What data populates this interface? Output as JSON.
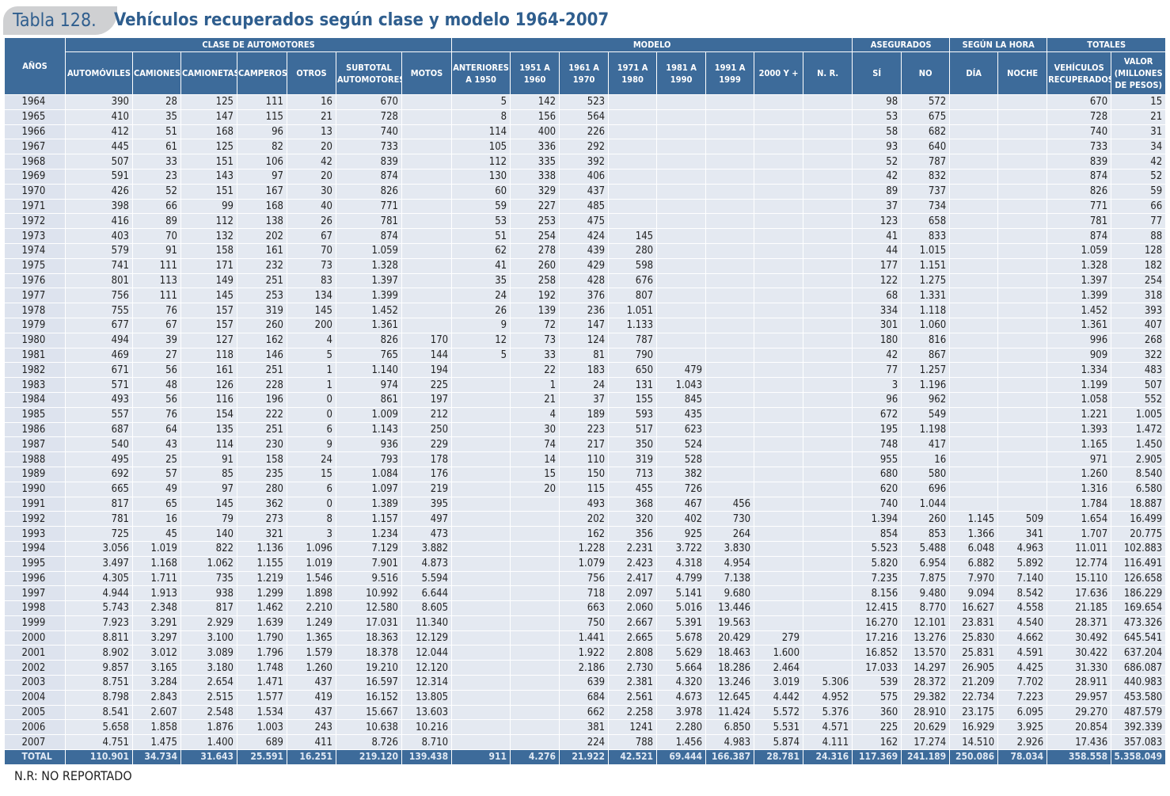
{
  "header": {
    "label": "Tabla 128.",
    "title": "Vehículos recuperados según clase y modelo 1964-2007"
  },
  "table": {
    "groups": [
      {
        "text": "CLASE  DE AUTOMOTORES",
        "span": 7
      },
      {
        "text": "MODELO",
        "span": 8
      },
      {
        "text": "ASEGURADOS",
        "span": 2
      },
      {
        "text": "SEGÚN LA HORA",
        "span": 2
      },
      {
        "text": "TOTALES",
        "span": 2
      }
    ],
    "columns": [
      "AÑOS",
      "AUTOMÓVILES",
      "CAMIONES",
      "CAMIONETAS",
      "CAMPEROS",
      "OTROS",
      "SUBTOTAL AUTOMOTORES",
      "MOTOS",
      "ANTERIORES A 1950",
      "1951 A 1960",
      "1961 A 1970",
      "1971 A 1980",
      "1981 A 1990",
      "1991 A 1999",
      "2000 Y +",
      "N. R.",
      "SÍ",
      "NO",
      "DÍA",
      "NOCHE",
      "VEHÍCULOS RECUPERADOS",
      "VALOR (MILLONES DE PESOS)"
    ],
    "rows": [
      [
        "1964",
        "390",
        "28",
        "125",
        "111",
        "16",
        "670",
        null,
        "5",
        "142",
        "523",
        null,
        null,
        null,
        null,
        null,
        "98",
        "572",
        null,
        null,
        "670",
        "15"
      ],
      [
        "1965",
        "410",
        "35",
        "147",
        "115",
        "21",
        "728",
        null,
        "8",
        "156",
        "564",
        null,
        null,
        null,
        null,
        null,
        "53",
        "675",
        null,
        null,
        "728",
        "21"
      ],
      [
        "1966",
        "412",
        "51",
        "168",
        "96",
        "13",
        "740",
        null,
        "114",
        "400",
        "226",
        null,
        null,
        null,
        null,
        null,
        "58",
        "682",
        null,
        null,
        "740",
        "31"
      ],
      [
        "1967",
        "445",
        "61",
        "125",
        "82",
        "20",
        "733",
        null,
        "105",
        "336",
        "292",
        null,
        null,
        null,
        null,
        null,
        "93",
        "640",
        null,
        null,
        "733",
        "34"
      ],
      [
        "1968",
        "507",
        "33",
        "151",
        "106",
        "42",
        "839",
        null,
        "112",
        "335",
        "392",
        null,
        null,
        null,
        null,
        null,
        "52",
        "787",
        null,
        null,
        "839",
        "42"
      ],
      [
        "1969",
        "591",
        "23",
        "143",
        "97",
        "20",
        "874",
        null,
        "130",
        "338",
        "406",
        null,
        null,
        null,
        null,
        null,
        "42",
        "832",
        null,
        null,
        "874",
        "52"
      ],
      [
        "1970",
        "426",
        "52",
        "151",
        "167",
        "30",
        "826",
        null,
        "60",
        "329",
        "437",
        null,
        null,
        null,
        null,
        null,
        "89",
        "737",
        null,
        null,
        "826",
        "59"
      ],
      [
        "1971",
        "398",
        "66",
        "99",
        "168",
        "40",
        "771",
        null,
        "59",
        "227",
        "485",
        null,
        null,
        null,
        null,
        null,
        "37",
        "734",
        null,
        null,
        "771",
        "66"
      ],
      [
        "1972",
        "416",
        "89",
        "112",
        "138",
        "26",
        "781",
        null,
        "53",
        "253",
        "475",
        null,
        null,
        null,
        null,
        null,
        "123",
        "658",
        null,
        null,
        "781",
        "77"
      ],
      [
        "1973",
        "403",
        "70",
        "132",
        "202",
        "67",
        "874",
        null,
        "51",
        "254",
        "424",
        "145",
        null,
        null,
        null,
        null,
        "41",
        "833",
        null,
        null,
        "874",
        "88"
      ],
      [
        "1974",
        "579",
        "91",
        "158",
        "161",
        "70",
        "1.059",
        null,
        "62",
        "278",
        "439",
        "280",
        null,
        null,
        null,
        null,
        "44",
        "1.015",
        null,
        null,
        "1.059",
        "128"
      ],
      [
        "1975",
        "741",
        "111",
        "171",
        "232",
        "73",
        "1.328",
        null,
        "41",
        "260",
        "429",
        "598",
        null,
        null,
        null,
        null,
        "177",
        "1.151",
        null,
        null,
        "1.328",
        "182"
      ],
      [
        "1976",
        "801",
        "113",
        "149",
        "251",
        "83",
        "1.397",
        null,
        "35",
        "258",
        "428",
        "676",
        null,
        null,
        null,
        null,
        "122",
        "1.275",
        null,
        null,
        "1.397",
        "254"
      ],
      [
        "1977",
        "756",
        "111",
        "145",
        "253",
        "134",
        "1.399",
        null,
        "24",
        "192",
        "376",
        "807",
        null,
        null,
        null,
        null,
        "68",
        "1.331",
        null,
        null,
        "1.399",
        "318"
      ],
      [
        "1978",
        "755",
        "76",
        "157",
        "319",
        "145",
        "1.452",
        null,
        "26",
        "139",
        "236",
        "1.051",
        null,
        null,
        null,
        null,
        "334",
        "1.118",
        null,
        null,
        "1.452",
        "393"
      ],
      [
        "1979",
        "677",
        "67",
        "157",
        "260",
        "200",
        "1.361",
        null,
        "9",
        "72",
        "147",
        "1.133",
        null,
        null,
        null,
        null,
        "301",
        "1.060",
        null,
        null,
        "1.361",
        "407"
      ],
      [
        "1980",
        "494",
        "39",
        "127",
        "162",
        "4",
        "826",
        "170",
        "12",
        "73",
        "124",
        "787",
        null,
        null,
        null,
        null,
        "180",
        "816",
        null,
        null,
        "996",
        "268"
      ],
      [
        "1981",
        "469",
        "27",
        "118",
        "146",
        "5",
        "765",
        "144",
        "5",
        "33",
        "81",
        "790",
        null,
        null,
        null,
        null,
        "42",
        "867",
        null,
        null,
        "909",
        "322"
      ],
      [
        "1982",
        "671",
        "56",
        "161",
        "251",
        "1",
        "1.140",
        "194",
        null,
        "22",
        "183",
        "650",
        "479",
        null,
        null,
        null,
        "77",
        "1.257",
        null,
        null,
        "1.334",
        "483"
      ],
      [
        "1983",
        "571",
        "48",
        "126",
        "228",
        "1",
        "974",
        "225",
        null,
        "1",
        "24",
        "131",
        "1.043",
        null,
        null,
        null,
        "3",
        "1.196",
        null,
        null,
        "1.199",
        "507"
      ],
      [
        "1984",
        "493",
        "56",
        "116",
        "196",
        "0",
        "861",
        "197",
        null,
        "21",
        "37",
        "155",
        "845",
        null,
        null,
        null,
        "96",
        "962",
        null,
        null,
        "1.058",
        "552"
      ],
      [
        "1985",
        "557",
        "76",
        "154",
        "222",
        "0",
        "1.009",
        "212",
        null,
        "4",
        "189",
        "593",
        "435",
        null,
        null,
        null,
        "672",
        "549",
        null,
        null,
        "1.221",
        "1.005"
      ],
      [
        "1986",
        "687",
        "64",
        "135",
        "251",
        "6",
        "1.143",
        "250",
        null,
        "30",
        "223",
        "517",
        "623",
        null,
        null,
        null,
        "195",
        "1.198",
        null,
        null,
        "1.393",
        "1.472"
      ],
      [
        "1987",
        "540",
        "43",
        "114",
        "230",
        "9",
        "936",
        "229",
        null,
        "74",
        "217",
        "350",
        "524",
        null,
        null,
        null,
        "748",
        "417",
        null,
        null,
        "1.165",
        "1.450"
      ],
      [
        "1988",
        "495",
        "25",
        "91",
        "158",
        "24",
        "793",
        "178",
        null,
        "14",
        "110",
        "319",
        "528",
        null,
        null,
        null,
        "955",
        "16",
        null,
        null,
        "971",
        "2.905"
      ],
      [
        "1989",
        "692",
        "57",
        "85",
        "235",
        "15",
        "1.084",
        "176",
        null,
        "15",
        "150",
        "713",
        "382",
        null,
        null,
        null,
        "680",
        "580",
        null,
        null,
        "1.260",
        "8.540"
      ],
      [
        "1990",
        "665",
        "49",
        "97",
        "280",
        "6",
        "1.097",
        "219",
        null,
        "20",
        "115",
        "455",
        "726",
        null,
        null,
        null,
        "620",
        "696",
        null,
        null,
        "1.316",
        "6.580"
      ],
      [
        "1991",
        "817",
        "65",
        "145",
        "362",
        "0",
        "1.389",
        "395",
        null,
        null,
        "493",
        "368",
        "467",
        "456",
        null,
        null,
        "740",
        "1.044",
        null,
        null,
        "1.784",
        "18.887"
      ],
      [
        "1992",
        "781",
        "16",
        "79",
        "273",
        "8",
        "1.157",
        "497",
        null,
        null,
        "202",
        "320",
        "402",
        "730",
        null,
        null,
        "1.394",
        "260",
        "1.145",
        "509",
        "1.654",
        "16.499"
      ],
      [
        "1993",
        "725",
        "45",
        "140",
        "321",
        "3",
        "1.234",
        "473",
        null,
        null,
        "162",
        "356",
        "925",
        "264",
        null,
        null,
        "854",
        "853",
        "1.366",
        "341",
        "1.707",
        "20.775"
      ],
      [
        "1994",
        "3.056",
        "1.019",
        "822",
        "1.136",
        "1.096",
        "7.129",
        "3.882",
        null,
        null,
        "1.228",
        "2.231",
        "3.722",
        "3.830",
        null,
        null,
        "5.523",
        "5.488",
        "6.048",
        "4.963",
        "11.011",
        "102.883"
      ],
      [
        "1995",
        "3.497",
        "1.168",
        "1.062",
        "1.155",
        "1.019",
        "7.901",
        "4.873",
        null,
        null,
        "1.079",
        "2.423",
        "4.318",
        "4.954",
        null,
        null,
        "5.820",
        "6.954",
        "6.882",
        "5.892",
        "12.774",
        "116.491"
      ],
      [
        "1996",
        "4.305",
        "1.711",
        "735",
        "1.219",
        "1.546",
        "9.516",
        "5.594",
        null,
        null,
        "756",
        "2.417",
        "4.799",
        "7.138",
        null,
        null,
        "7.235",
        "7.875",
        "7.970",
        "7.140",
        "15.110",
        "126.658"
      ],
      [
        "1997",
        "4.944",
        "1.913",
        "938",
        "1.299",
        "1.898",
        "10.992",
        "6.644",
        null,
        null,
        "718",
        "2.097",
        "5.141",
        "9.680",
        null,
        null,
        "8.156",
        "9.480",
        "9.094",
        "8.542",
        "17.636",
        "186.229"
      ],
      [
        "1998",
        "5.743",
        "2.348",
        "817",
        "1.462",
        "2.210",
        "12.580",
        "8.605",
        null,
        null,
        "663",
        "2.060",
        "5.016",
        "13.446",
        null,
        null,
        "12.415",
        "8.770",
        "16.627",
        "4.558",
        "21.185",
        "169.654"
      ],
      [
        "1999",
        "7.923",
        "3.291",
        "2.929",
        "1.639",
        "1.249",
        "17.031",
        "11.340",
        null,
        null,
        "750",
        "2.667",
        "5.391",
        "19.563",
        null,
        null,
        "16.270",
        "12.101",
        "23.831",
        "4.540",
        "28.371",
        "473.326"
      ],
      [
        "2000",
        "8.811",
        "3.297",
        "3.100",
        "1.790",
        "1.365",
        "18.363",
        "12.129",
        null,
        null,
        "1.441",
        "2.665",
        "5.678",
        "20.429",
        "279",
        null,
        "17.216",
        "13.276",
        "25.830",
        "4.662",
        "30.492",
        "645.541"
      ],
      [
        "2001",
        "8.902",
        "3.012",
        "3.089",
        "1.796",
        "1.579",
        "18.378",
        "12.044",
        null,
        null,
        "1.922",
        "2.808",
        "5.629",
        "18.463",
        "1.600",
        null,
        "16.852",
        "13.570",
        "25.831",
        "4.591",
        "30.422",
        "637.204"
      ],
      [
        "2002",
        "9.857",
        "3.165",
        "3.180",
        "1.748",
        "1.260",
        "19.210",
        "12.120",
        null,
        null,
        "2.186",
        "2.730",
        "5.664",
        "18.286",
        "2.464",
        null,
        "17.033",
        "14.297",
        "26.905",
        "4.425",
        "31.330",
        "686.087"
      ],
      [
        "2003",
        "8.751",
        "3.284",
        "2.654",
        "1.471",
        "437",
        "16.597",
        "12.314",
        null,
        null,
        "639",
        "2.381",
        "4.320",
        "13.246",
        "3.019",
        "5.306",
        "539",
        "28.372",
        "21.209",
        "7.702",
        "28.911",
        "440.983"
      ],
      [
        "2004",
        "8.798",
        "2.843",
        "2.515",
        "1.577",
        "419",
        "16.152",
        "13.805",
        null,
        null,
        "684",
        "2.561",
        "4.673",
        "12.645",
        "4.442",
        "4.952",
        "575",
        "29.382",
        "22.734",
        "7.223",
        "29.957",
        "453.580"
      ],
      [
        "2005",
        "8.541",
        "2.607",
        "2.548",
        "1.534",
        "437",
        "15.667",
        "13.603",
        null,
        null,
        "662",
        "2.258",
        "3.978",
        "11.424",
        "5.572",
        "5.376",
        "360",
        "28.910",
        "23.175",
        "6.095",
        "29.270",
        "487.579"
      ],
      [
        "2006",
        "5.658",
        "1.858",
        "1.876",
        "1.003",
        "243",
        "10.638",
        "10.216",
        null,
        null,
        "381",
        "1241",
        "2.280",
        "6.850",
        "5.531",
        "4.571",
        "225",
        "20.629",
        "16.929",
        "3.925",
        "20.854",
        "392.339"
      ],
      [
        "2007",
        "4.751",
        "1.475",
        "1.400",
        "689",
        "411",
        "8.726",
        "8.710",
        null,
        null,
        "224",
        "788",
        "1.456",
        "4.983",
        "5.874",
        "4.111",
        "162",
        "17.274",
        "14.510",
        "2.926",
        "17.436",
        "357.083"
      ]
    ],
    "total": [
      "TOTAL",
      "110.901",
      "34.734",
      "31.643",
      "25.591",
      "16.251",
      "219.120",
      "139.438",
      "911",
      "4.276",
      "21.922",
      "42.521",
      "69.444",
      "166.387",
      "28.781",
      "24.316",
      "117.369",
      "241.189",
      "250.086",
      "78.034",
      "358.558",
      "5.358.049"
    ]
  },
  "footnote": "N.R: NO REPORTADO"
}
